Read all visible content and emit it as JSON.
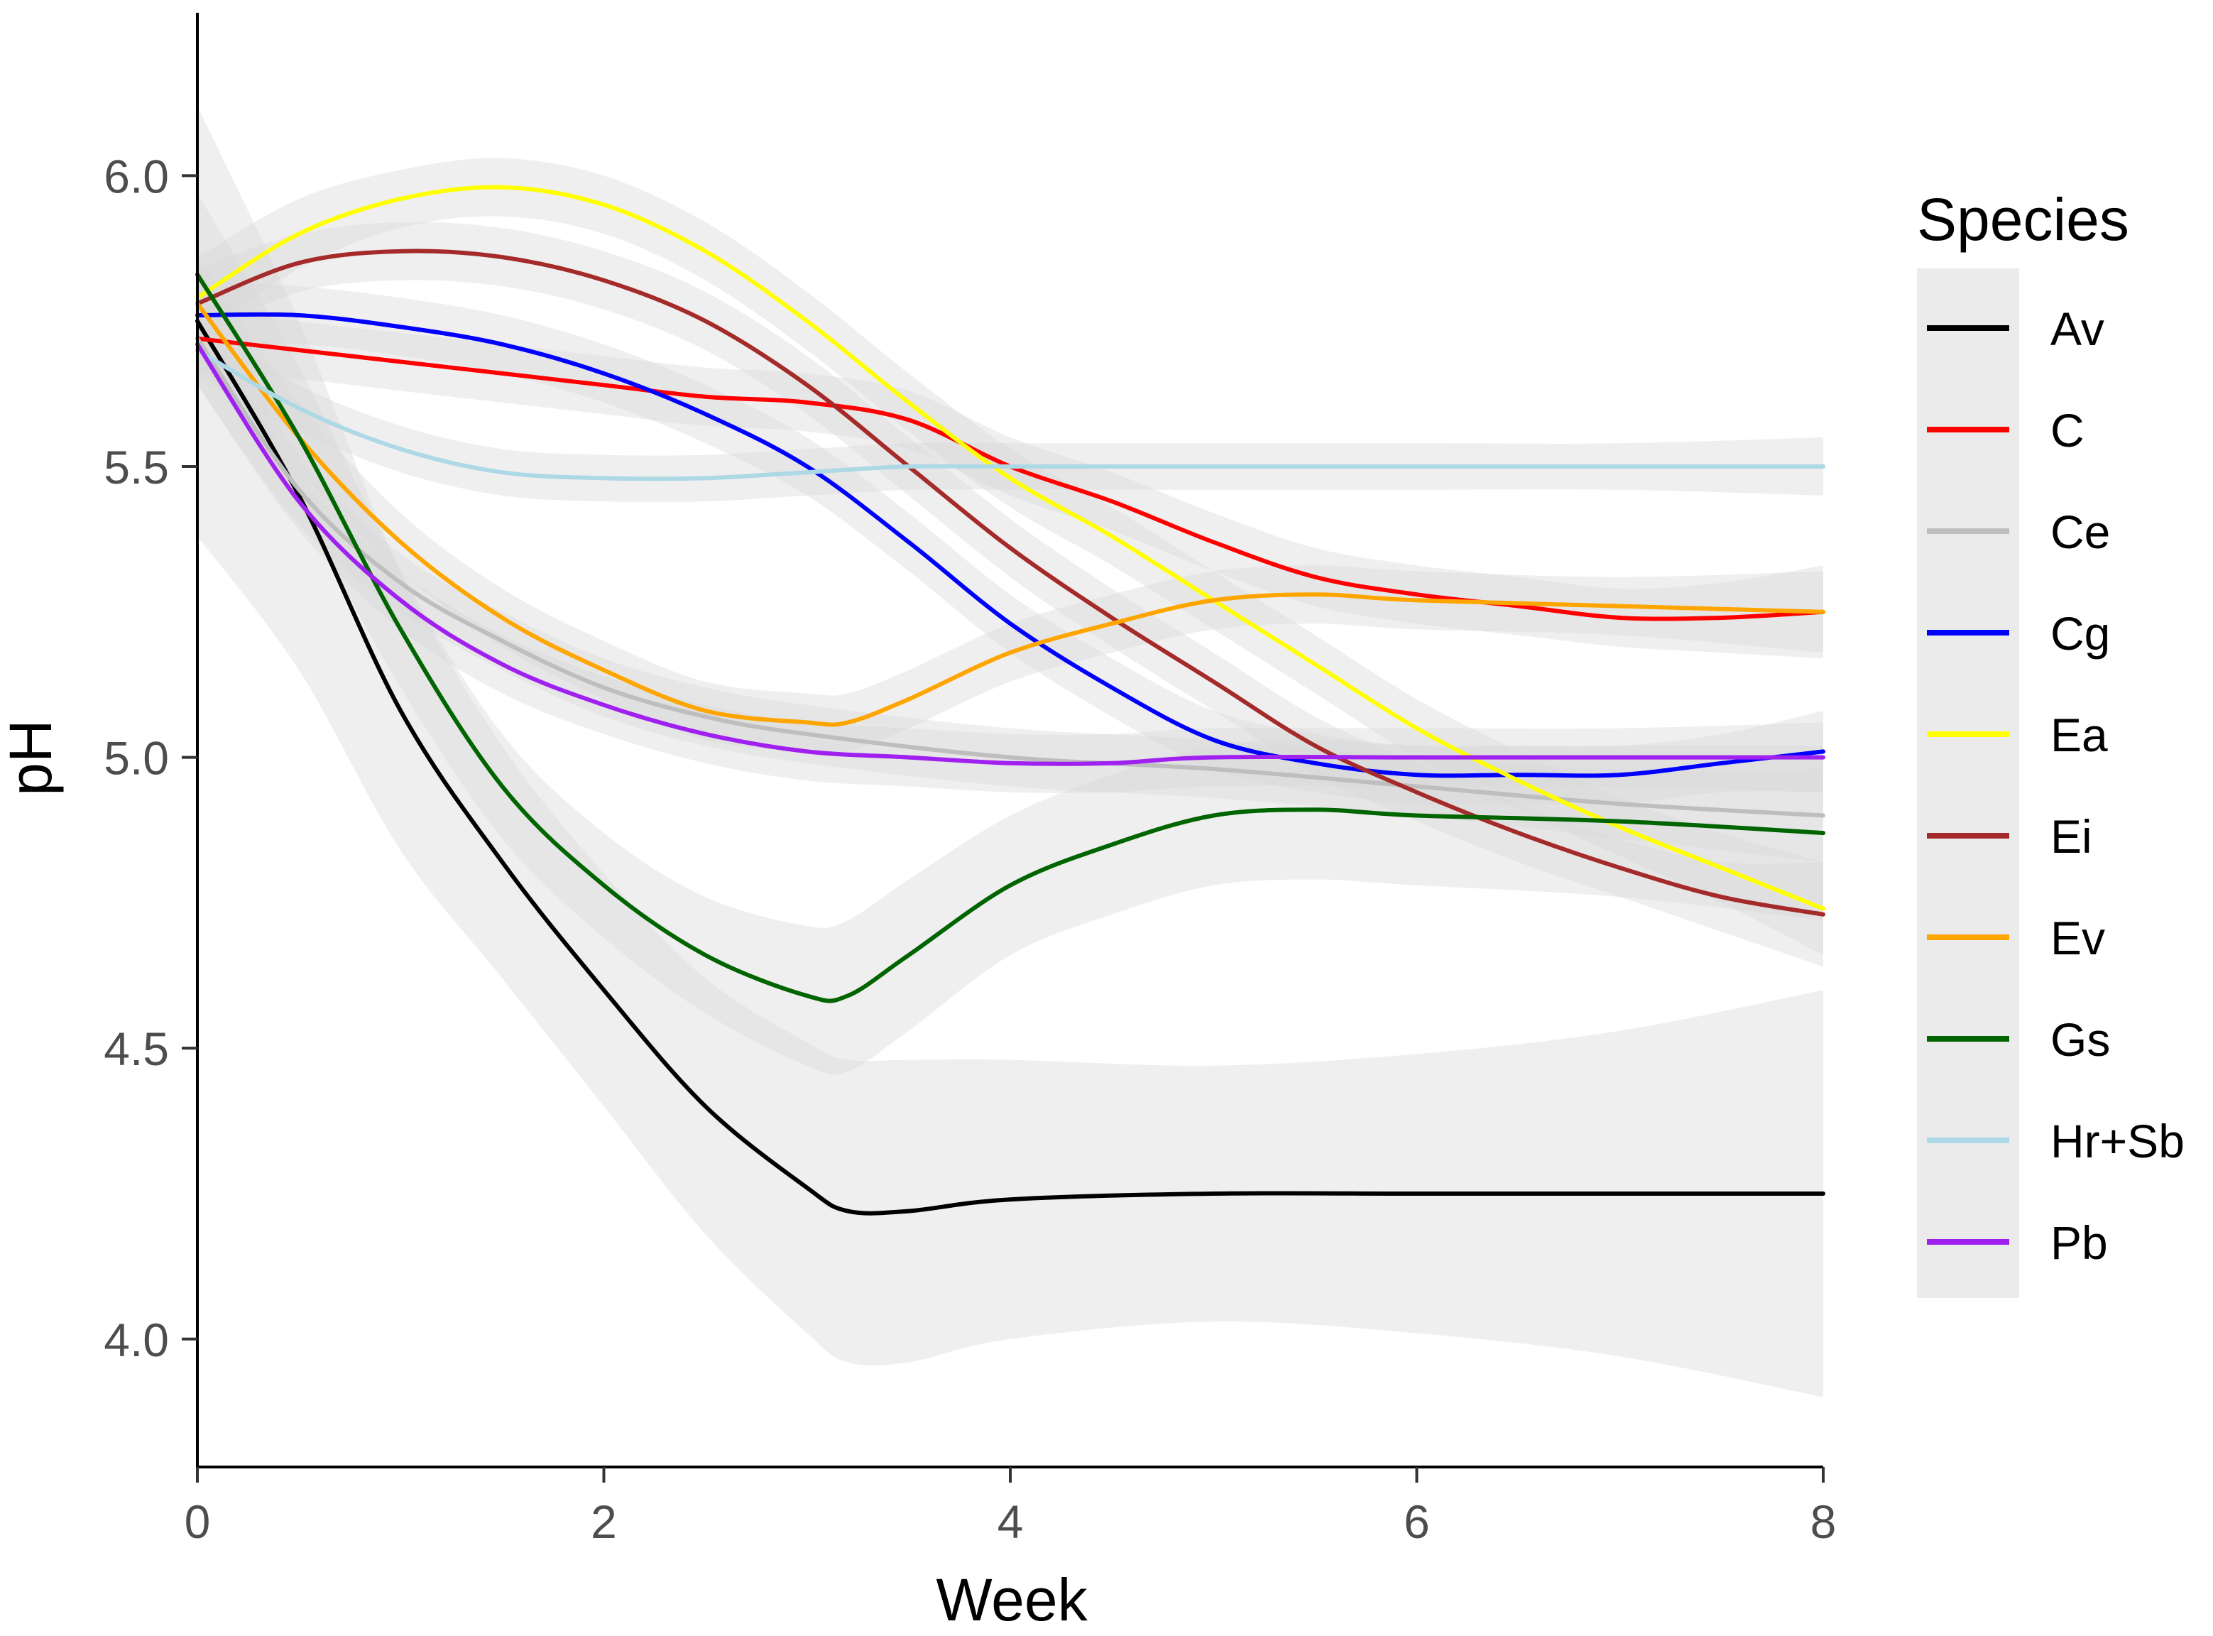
{
  "chart_data": {
    "type": "line",
    "title": "",
    "xlabel": "Week",
    "ylabel": "pH",
    "xlim": [
      0,
      8
    ],
    "ylim": [
      3.78,
      6.28
    ],
    "x_ticks": [
      0,
      2,
      4,
      6,
      8
    ],
    "x_tick_labels": [
      "0",
      "2",
      "4",
      "6",
      "8"
    ],
    "y_ticks": [
      4.0,
      4.5,
      5.0,
      5.5,
      6.0
    ],
    "y_tick_labels": [
      "4.0",
      "4.5",
      "5.0",
      "5.5",
      "6.0"
    ],
    "grid": false,
    "legend": {
      "title": "Species",
      "position": "right"
    },
    "confidence_band_color": "#d9d9d9",
    "series": [
      {
        "name": "Av",
        "color": "#000000",
        "x": [
          0,
          0.5,
          1,
          1.5,
          2,
          2.5,
          3,
          3.2,
          3.5,
          4,
          5,
          6,
          7,
          8
        ],
        "y": [
          5.75,
          5.45,
          5.08,
          4.82,
          4.6,
          4.4,
          4.26,
          4.22,
          4.22,
          4.24,
          4.25,
          4.25,
          4.25,
          4.25
        ],
        "band": [
          0.37,
          0.3,
          0.24,
          0.2,
          0.2,
          0.22,
          0.25,
          0.26,
          0.26,
          0.24,
          0.22,
          0.24,
          0.28,
          0.35
        ]
      },
      {
        "name": "C",
        "color": "#ff0000",
        "x": [
          0,
          0.5,
          1,
          1.5,
          2,
          2.5,
          3,
          3.5,
          4,
          4.5,
          5,
          5.5,
          6,
          6.5,
          7,
          7.5,
          8
        ],
        "y": [
          5.72,
          5.7,
          5.68,
          5.66,
          5.64,
          5.62,
          5.61,
          5.58,
          5.5,
          5.44,
          5.37,
          5.31,
          5.28,
          5.26,
          5.24,
          5.24,
          5.25
        ],
        "band": [
          0.06,
          0.05,
          0.05,
          0.05,
          0.05,
          0.05,
          0.05,
          0.05,
          0.05,
          0.05,
          0.05,
          0.05,
          0.05,
          0.05,
          0.05,
          0.06,
          0.08
        ]
      },
      {
        "name": "Ce",
        "color": "#bebebe",
        "x": [
          0,
          0.5,
          1,
          1.5,
          2,
          2.5,
          3,
          4,
          5,
          6,
          7,
          8
        ],
        "y": [
          5.72,
          5.46,
          5.3,
          5.2,
          5.12,
          5.07,
          5.04,
          5.0,
          4.98,
          4.95,
          4.92,
          4.9
        ],
        "band": [
          0.08,
          0.06,
          0.05,
          0.05,
          0.05,
          0.05,
          0.05,
          0.05,
          0.05,
          0.05,
          0.06,
          0.08
        ]
      },
      {
        "name": "Cg",
        "color": "#0000ff",
        "x": [
          0,
          0.5,
          1,
          1.5,
          2,
          2.5,
          3,
          3.5,
          4,
          4.5,
          5,
          5.5,
          6,
          6.5,
          7,
          7.5,
          8
        ],
        "y": [
          5.76,
          5.76,
          5.74,
          5.71,
          5.66,
          5.59,
          5.5,
          5.37,
          5.23,
          5.12,
          5.03,
          4.99,
          4.97,
          4.97,
          4.97,
          4.99,
          5.01
        ],
        "band": [
          0.06,
          0.05,
          0.05,
          0.05,
          0.05,
          0.05,
          0.05,
          0.05,
          0.05,
          0.05,
          0.05,
          0.05,
          0.05,
          0.05,
          0.05,
          0.05,
          0.07
        ]
      },
      {
        "name": "Ea",
        "color": "#ffff00",
        "x": [
          0,
          0.5,
          1,
          1.5,
          2,
          2.5,
          3,
          3.5,
          4,
          4.5,
          5,
          5.5,
          6,
          6.5,
          7,
          7.5,
          8
        ],
        "y": [
          5.79,
          5.9,
          5.96,
          5.98,
          5.95,
          5.87,
          5.75,
          5.61,
          5.48,
          5.38,
          5.27,
          5.16,
          5.05,
          4.96,
          4.88,
          4.81,
          4.74
        ],
        "band": [
          0.07,
          0.06,
          0.05,
          0.05,
          0.05,
          0.05,
          0.05,
          0.05,
          0.05,
          0.05,
          0.05,
          0.05,
          0.05,
          0.05,
          0.05,
          0.06,
          0.08
        ]
      },
      {
        "name": "Ei",
        "color": "#a52a2a",
        "x": [
          0,
          0.5,
          1,
          1.5,
          2,
          2.5,
          3,
          3.5,
          4,
          4.5,
          5,
          5.5,
          6,
          6.5,
          7,
          7.5,
          8
        ],
        "y": [
          5.78,
          5.85,
          5.87,
          5.86,
          5.82,
          5.75,
          5.64,
          5.5,
          5.36,
          5.24,
          5.13,
          5.02,
          4.94,
          4.87,
          4.81,
          4.76,
          4.73
        ],
        "band": [
          0.06,
          0.05,
          0.05,
          0.05,
          0.05,
          0.05,
          0.05,
          0.05,
          0.05,
          0.05,
          0.05,
          0.05,
          0.05,
          0.05,
          0.05,
          0.06,
          0.09
        ]
      },
      {
        "name": "Ev",
        "color": "#ffa500",
        "x": [
          0,
          0.5,
          1,
          1.5,
          2,
          2.5,
          3,
          3.2,
          3.5,
          4,
          4.5,
          5,
          5.5,
          6,
          7,
          8
        ],
        "y": [
          5.78,
          5.55,
          5.37,
          5.24,
          5.15,
          5.08,
          5.06,
          5.06,
          5.1,
          5.18,
          5.23,
          5.27,
          5.28,
          5.27,
          5.26,
          5.25
        ],
        "band": [
          0.08,
          0.06,
          0.05,
          0.05,
          0.05,
          0.05,
          0.05,
          0.05,
          0.05,
          0.05,
          0.05,
          0.05,
          0.05,
          0.05,
          0.05,
          0.07
        ]
      },
      {
        "name": "Gs",
        "color": "#006400",
        "x": [
          0,
          0.5,
          1,
          1.5,
          2,
          2.5,
          3,
          3.2,
          3.5,
          4,
          4.5,
          5,
          5.5,
          6,
          7,
          8
        ],
        "y": [
          5.83,
          5.55,
          5.22,
          4.95,
          4.78,
          4.66,
          4.59,
          4.59,
          4.66,
          4.78,
          4.85,
          4.9,
          4.91,
          4.9,
          4.89,
          4.87
        ],
        "band": [
          0.14,
          0.12,
          0.1,
          0.09,
          0.09,
          0.1,
          0.12,
          0.13,
          0.13,
          0.12,
          0.12,
          0.12,
          0.12,
          0.12,
          0.13,
          0.15
        ]
      },
      {
        "name": "Hr+Sb",
        "color": "#add8e6",
        "x": [
          0,
          0.5,
          1,
          1.5,
          2,
          2.5,
          3,
          3.5,
          4,
          5,
          6,
          7,
          8
        ],
        "y": [
          5.7,
          5.6,
          5.53,
          5.49,
          5.48,
          5.48,
          5.49,
          5.5,
          5.5,
          5.5,
          5.5,
          5.5,
          5.5
        ],
        "band": [
          0.05,
          0.04,
          0.04,
          0.04,
          0.04,
          0.04,
          0.04,
          0.04,
          0.04,
          0.04,
          0.04,
          0.04,
          0.05
        ]
      },
      {
        "name": "Pb",
        "color": "#a020f0",
        "x": [
          0,
          0.5,
          1,
          1.5,
          2,
          2.5,
          3,
          3.5,
          4,
          4.5,
          5,
          6,
          7,
          8
        ],
        "y": [
          5.71,
          5.44,
          5.27,
          5.16,
          5.09,
          5.04,
          5.01,
          5.0,
          4.99,
          4.99,
          5.0,
          5.0,
          5.0,
          5.0
        ],
        "band": [
          0.07,
          0.05,
          0.05,
          0.05,
          0.05,
          0.05,
          0.05,
          0.05,
          0.05,
          0.05,
          0.05,
          0.05,
          0.05,
          0.06
        ]
      }
    ]
  }
}
